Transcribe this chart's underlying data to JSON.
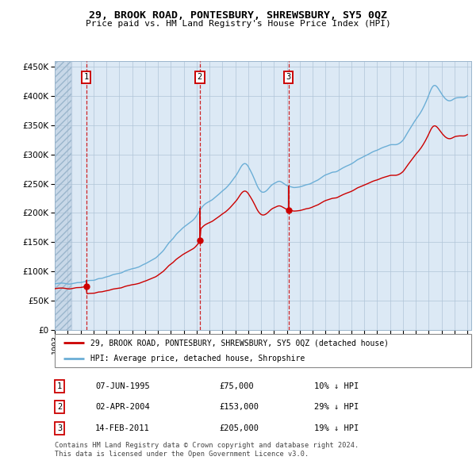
{
  "title": "29, BROOK ROAD, PONTESBURY, SHREWSBURY, SY5 0QZ",
  "subtitle": "Price paid vs. HM Land Registry's House Price Index (HPI)",
  "legend_line1": "29, BROOK ROAD, PONTESBURY, SHREWSBURY, SY5 0QZ (detached house)",
  "legend_line2": "HPI: Average price, detached house, Shropshire",
  "transactions": [
    {
      "num": 1,
      "date": "07-JUN-1995",
      "price": 75000,
      "pct": "10%",
      "dir": "↓"
    },
    {
      "num": 2,
      "date": "02-APR-2004",
      "price": 153000,
      "pct": "29%",
      "dir": "↓"
    },
    {
      "num": 3,
      "date": "14-FEB-2011",
      "price": 205000,
      "pct": "19%",
      "dir": "↓"
    }
  ],
  "transaction_years": [
    1995.44,
    2004.25,
    2011.12
  ],
  "transaction_prices": [
    75000,
    153000,
    205000
  ],
  "hpi_color": "#6baed6",
  "price_color": "#cc0000",
  "vline_color": "#cc0000",
  "bg_color": "#dce9f5",
  "grid_color": "#b0c4d8",
  "ylim": [
    0,
    460000
  ],
  "yticks": [
    0,
    50000,
    100000,
    150000,
    200000,
    250000,
    300000,
    350000,
    400000,
    450000
  ],
  "footer1": "Contains HM Land Registry data © Crown copyright and database right 2024.",
  "footer2": "This data is licensed under the Open Government Licence v3.0."
}
